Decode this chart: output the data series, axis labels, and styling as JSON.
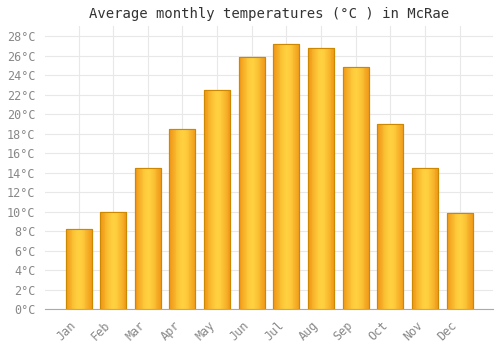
{
  "title": "Average monthly temperatures (°C ) in McRae",
  "months": [
    "Jan",
    "Feb",
    "Mar",
    "Apr",
    "May",
    "Jun",
    "Jul",
    "Aug",
    "Sep",
    "Oct",
    "Nov",
    "Dec"
  ],
  "values": [
    8.2,
    10.0,
    14.5,
    18.5,
    22.5,
    25.8,
    27.2,
    26.8,
    24.8,
    19.0,
    14.5,
    9.8
  ],
  "bar_color_center": "#FFD040",
  "bar_color_edge": "#E87800",
  "bar_border_color": "#CC8800",
  "ylim": [
    0,
    29
  ],
  "ytick_step": 2,
  "background_color": "#FFFFFF",
  "grid_color": "#E8E8E8",
  "title_fontsize": 10,
  "tick_fontsize": 8.5,
  "tick_color": "#888888"
}
